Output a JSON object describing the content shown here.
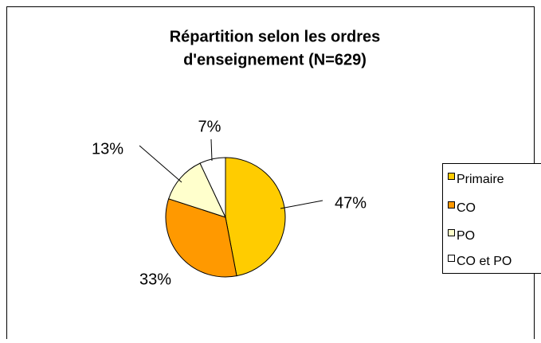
{
  "chart_data": {
    "type": "pie",
    "title": [
      "Répartition selon les ordres",
      "d'enseignement (N=629)"
    ],
    "categories": [
      "Primaire",
      "CO",
      "PO",
      "CO et PO"
    ],
    "values": [
      47,
      33,
      13,
      7
    ],
    "value_labels": [
      "47%",
      "33%",
      "13%",
      "7%"
    ],
    "colors": [
      "#FFCC00",
      "#FF9900",
      "#FFFFCC",
      "#FFFFFF"
    ],
    "legend": "right"
  }
}
